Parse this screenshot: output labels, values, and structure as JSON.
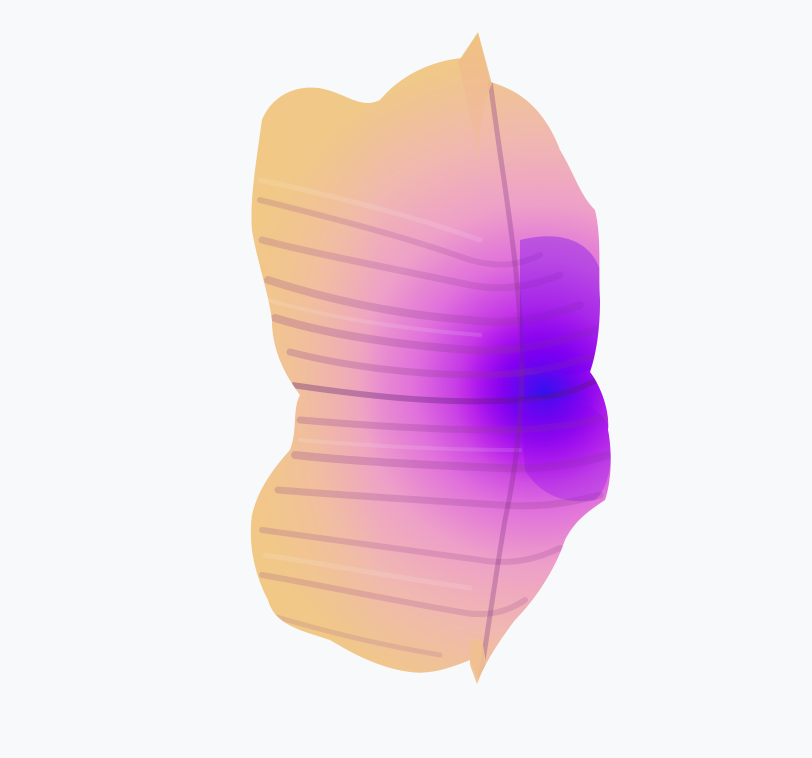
{
  "scene": {
    "subject": "3d-isosurface-render",
    "background_color": "#f8f9fb",
    "colors": {
      "outer_tan": "#f0c888",
      "mid_pink": "#eea6c8",
      "mid_magenta": "#e070e0",
      "deep_violet": "#b000f0",
      "core_blue": "#6010f0",
      "shadow": "#8a3a8a"
    }
  }
}
